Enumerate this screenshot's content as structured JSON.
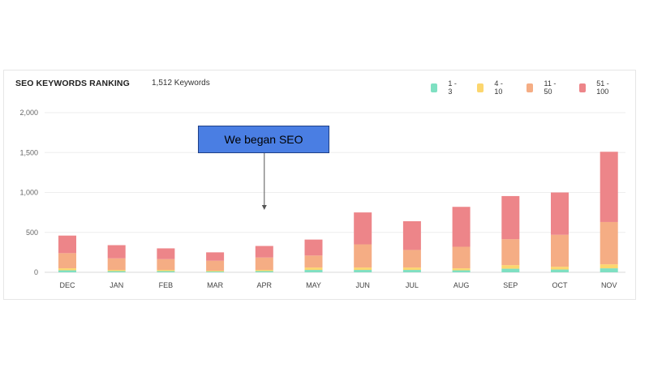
{
  "chart_data": {
    "type": "bar",
    "stacked": true,
    "title": "SEO KEYWORDS RANKING",
    "subtitle": "1,512 Keywords",
    "categories": [
      "DEC",
      "JAN",
      "FEB",
      "MAR",
      "APR",
      "MAY",
      "JUN",
      "JUL",
      "AUG",
      "SEP",
      "OCT",
      "NOV"
    ],
    "series": [
      {
        "name": "1 - 3",
        "color": "#7fe0c2",
        "values": [
          25,
          15,
          15,
          10,
          15,
          30,
          30,
          30,
          25,
          45,
          35,
          50
        ]
      },
      {
        "name": "4 - 10",
        "color": "#fcd66e",
        "values": [
          25,
          15,
          15,
          10,
          15,
          30,
          30,
          30,
          25,
          45,
          35,
          50
        ]
      },
      {
        "name": "11 - 50",
        "color": "#f5ad84",
        "values": [
          190,
          145,
          135,
          125,
          155,
          150,
          290,
          220,
          270,
          325,
          400,
          530
        ]
      },
      {
        "name": "51 - 100",
        "color": "#ed8589",
        "values": [
          220,
          165,
          135,
          105,
          145,
          200,
          400,
          360,
          500,
          540,
          530,
          880
        ]
      }
    ],
    "ylim": [
      0,
      2000
    ],
    "yticks": [
      0,
      500,
      1000,
      1500,
      2000
    ],
    "ytick_labels": [
      "0",
      "500",
      "1,000",
      "1,500",
      "2,000"
    ],
    "grid": true,
    "legend_position": "top-right",
    "annotation": {
      "text": "We began SEO",
      "points_to": "APR"
    }
  }
}
